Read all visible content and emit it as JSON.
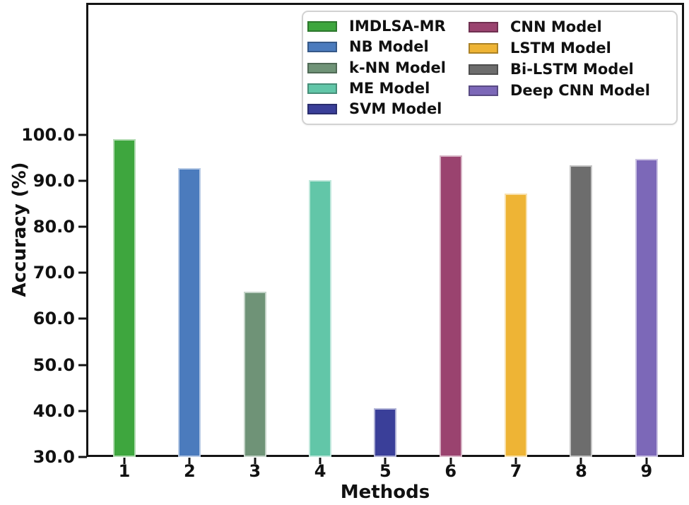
{
  "chart_data": {
    "type": "bar",
    "title": "",
    "xlabel": "Methods",
    "ylabel": "Accuracy (%)",
    "categories": [
      "1",
      "2",
      "3",
      "4",
      "5",
      "6",
      "7",
      "8",
      "9"
    ],
    "series": [
      {
        "method": "1",
        "name": "IMDLSA-MR",
        "value": 99.0,
        "color": "#3ea63e"
      },
      {
        "method": "2",
        "name": "NB Model",
        "value": 92.8,
        "color": "#4b7bbd"
      },
      {
        "method": "3",
        "name": "k-NN Model",
        "value": 65.9,
        "color": "#6f9377"
      },
      {
        "method": "4",
        "name": "ME Model",
        "value": 90.1,
        "color": "#62c6a8"
      },
      {
        "method": "5",
        "name": "SVM Model",
        "value": 40.6,
        "color": "#3a3f99"
      },
      {
        "method": "6",
        "name": "CNN Model",
        "value": 95.5,
        "color": "#9a436f"
      },
      {
        "method": "7",
        "name": "LSTM Model",
        "value": 87.2,
        "color": "#eeb435"
      },
      {
        "method": "8",
        "name": "Bi-LSTM Model",
        "value": 93.3,
        "color": "#6d6d6d"
      },
      {
        "method": "9",
        "name": "Deep CNN Model",
        "value": 94.7,
        "color": "#7c68b8"
      }
    ],
    "ylim": [
      30,
      128.5
    ],
    "yticks": [
      30,
      40,
      50,
      60,
      70,
      80,
      90,
      100
    ],
    "ytick_labels": [
      "30.0",
      "40.0",
      "50.0",
      "60.0",
      "70.0",
      "80.0",
      "90.0",
      "100.0"
    ],
    "grid": false,
    "legend": {
      "position": "upper center",
      "columns": 2,
      "column_split": [
        5,
        4
      ]
    }
  }
}
